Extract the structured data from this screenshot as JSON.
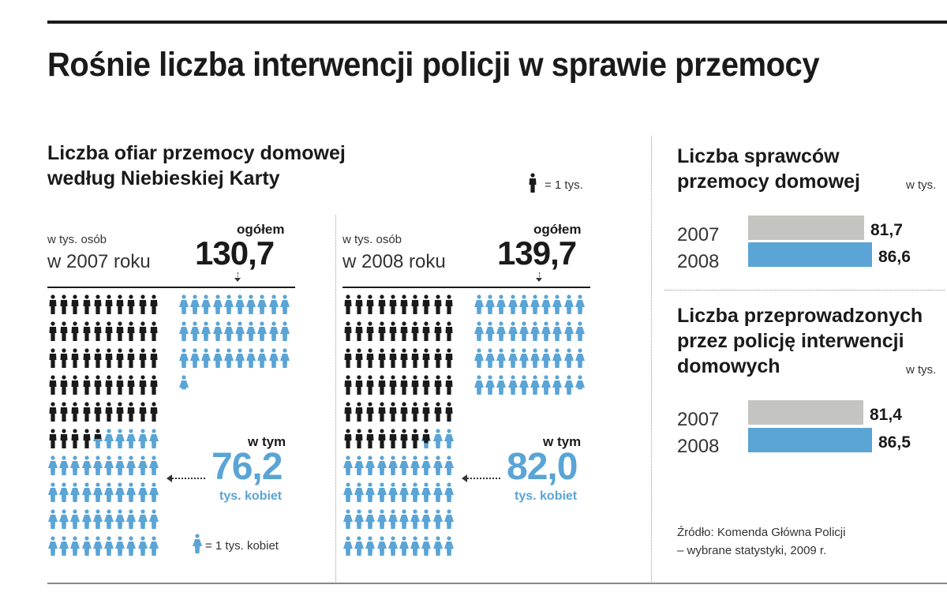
{
  "title": "Rośnie liczba interwencji policji w sprawie przemocy",
  "left": {
    "heading_line1": "Liczba ofiar przemocy domowej",
    "heading_line2": "według Niebieskiej Karty",
    "legend_total": "= 1 tys.",
    "legend_women": "= 1 tys. kobiet",
    "panels": [
      {
        "unit": "w tys. osób",
        "year": "w 2007 roku",
        "total_label": "ogółem",
        "total": "130,7",
        "women_label": "w tym",
        "women": "76,2",
        "women_unit": "tys. kobiet"
      },
      {
        "unit": "w tys. osób",
        "year": "w 2008 roku",
        "total_label": "ogółem",
        "total": "139,7",
        "women_label": "w tym",
        "women": "82,0",
        "women_unit": "tys. kobiet"
      }
    ]
  },
  "right": {
    "chart1": {
      "heading_line1": "Liczba sprawców",
      "heading_line2": "przemocy domowej",
      "unit": "w tys.",
      "rows": [
        {
          "year": "2007",
          "value_label": "81,7"
        },
        {
          "year": "2008",
          "value_label": "86,6"
        }
      ]
    },
    "chart2": {
      "heading_line1": "Liczba przeprowadzonych",
      "heading_line2": "przez policję interwencji",
      "heading_line3": "domowych",
      "unit": "w tys.",
      "rows": [
        {
          "year": "2007",
          "value_label": "81,4"
        },
        {
          "year": "2008",
          "value_label": "86,5"
        }
      ]
    },
    "source_line1": "Źródło: Komenda Główna Policji",
    "source_line2": "– wybrane statystyki, 2009 r."
  },
  "colors": {
    "men": "#1a1a1a",
    "women": "#5aa4d6",
    "bar2007": "#c4c4c0",
    "bar2008": "#5aa4d6"
  },
  "chart_data": [
    {
      "type": "bar",
      "title": "Liczba ofiar przemocy domowej według Niebieskiej Karty",
      "categories": [
        "2007",
        "2008"
      ],
      "series": [
        {
          "name": "ogółem",
          "values": [
            130.7,
            139.7
          ]
        },
        {
          "name": "tys. kobiet",
          "values": [
            76.2,
            82.0
          ]
        }
      ]
    },
    {
      "type": "bar",
      "title": "Liczba sprawców przemocy domowej",
      "categories": [
        "2007",
        "2008"
      ],
      "values": [
        81.7,
        86.6
      ]
    },
    {
      "type": "bar",
      "title": "Liczba przeprowadzonych przez policję interwencji domowych",
      "categories": [
        "2007",
        "2008"
      ],
      "values": [
        81.4,
        86.5
      ]
    }
  ]
}
